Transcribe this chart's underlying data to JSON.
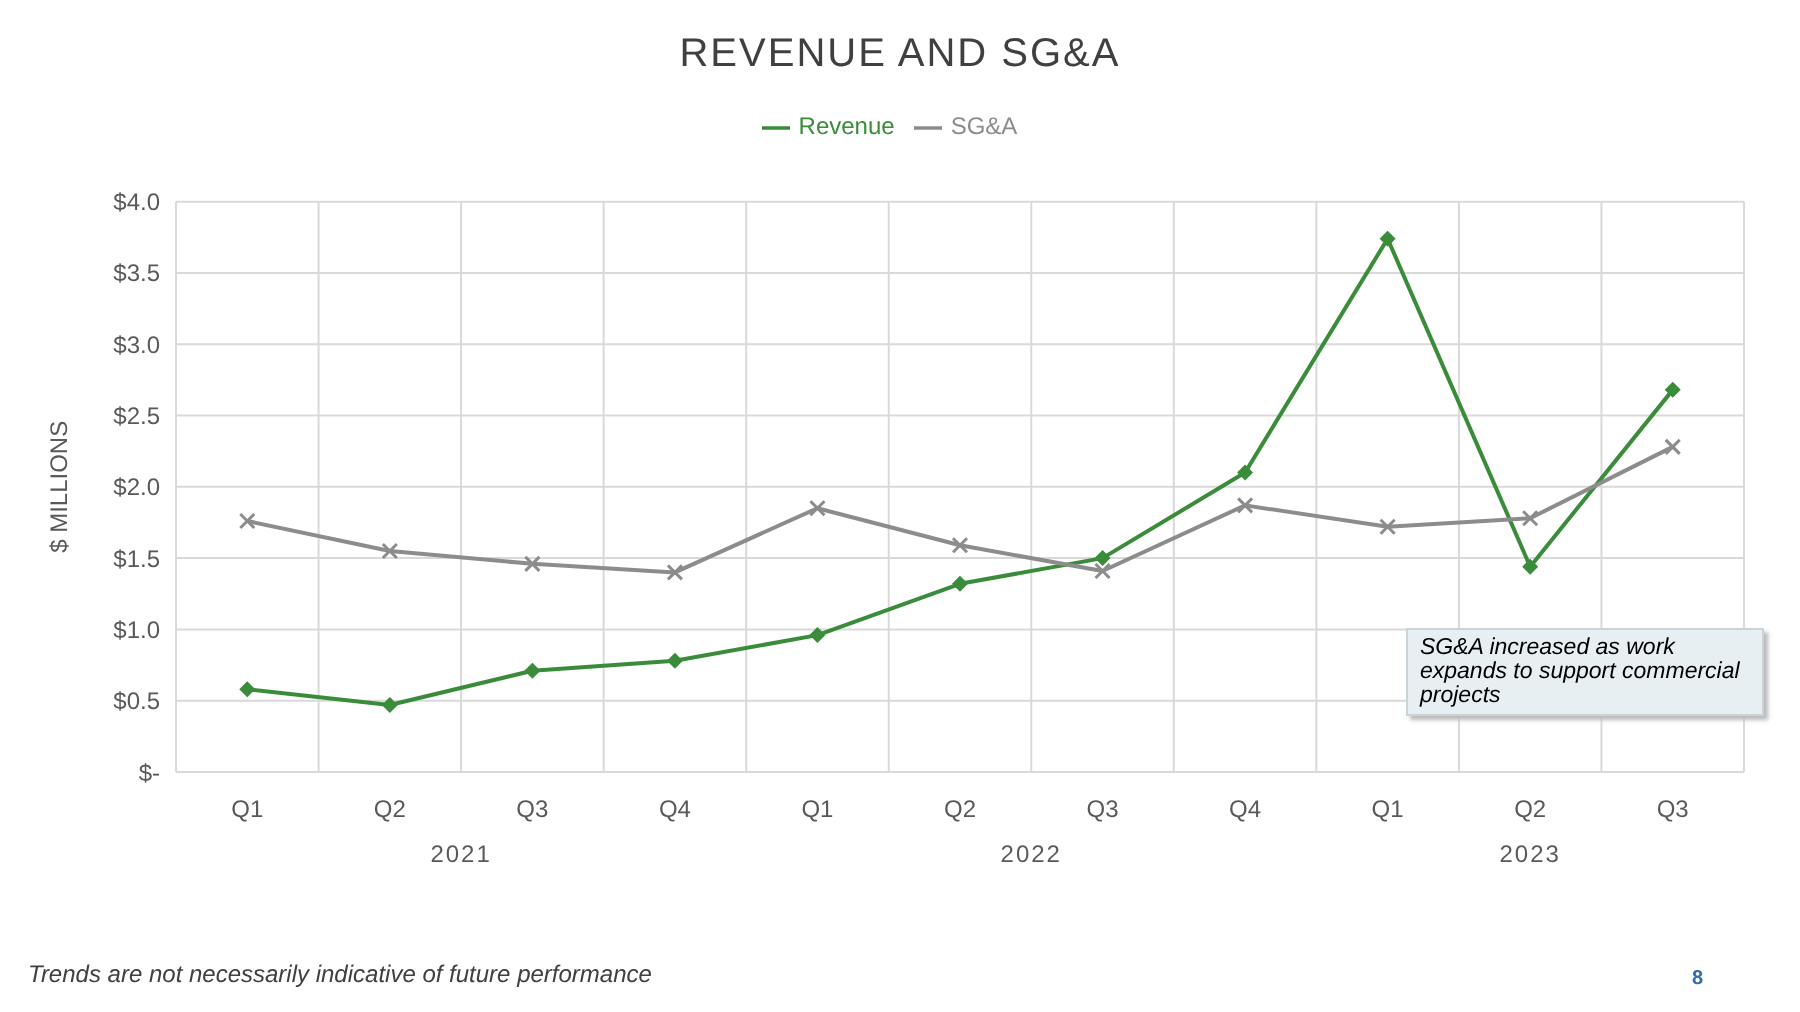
{
  "chart_data": {
    "type": "line",
    "title": "REVENUE AND SG&A",
    "ylabel": "$ MILLIONS",
    "categories": [
      "Q1",
      "Q2",
      "Q3",
      "Q4",
      "Q1",
      "Q2",
      "Q3",
      "Q4",
      "Q1",
      "Q2",
      "Q3"
    ],
    "series": [
      {
        "name": "Revenue",
        "color": "#3a8c3a",
        "marker": "diamond",
        "values": [
          0.58,
          0.47,
          0.71,
          0.78,
          0.96,
          1.32,
          1.5,
          2.1,
          3.74,
          1.44,
          2.68
        ]
      },
      {
        "name": "SG&A",
        "color": "#8c8c8c",
        "marker": "cross",
        "values": [
          1.76,
          1.55,
          1.46,
          1.4,
          1.85,
          1.59,
          1.41,
          1.87,
          1.72,
          1.78,
          2.28
        ]
      }
    ],
    "ylim": [
      0,
      4
    ],
    "yticks": [
      {
        "value": 0,
        "label": "$-"
      },
      {
        "value": 0.5,
        "label": "$0.5"
      },
      {
        "value": 1,
        "label": "$1.0"
      },
      {
        "value": 1.5,
        "label": "$1.5"
      },
      {
        "value": 2,
        "label": "$2.0"
      },
      {
        "value": 2.5,
        "label": "$2.5"
      },
      {
        "value": 3,
        "label": "$3.0"
      },
      {
        "value": 3.5,
        "label": "$3.5"
      },
      {
        "value": 4,
        "label": "$4.0"
      }
    ],
    "grid": true,
    "legend": "top",
    "line_style": "solid",
    "annotations": [
      "2021",
      "2022",
      "2023",
      "SG&A increased as work expands to support commercial projects",
      "Trends are not necessarily indicative of future performance",
      "8"
    ]
  }
}
